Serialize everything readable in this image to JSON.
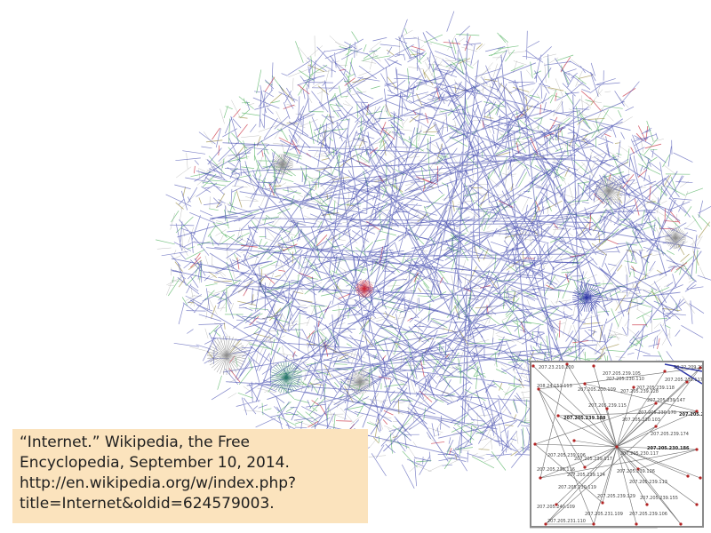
{
  "citation": {
    "lines": [
      "“Internet.” Wikipedia, the Free",
      "Encyclopedia, September 10, 2014.",
      "http://en.wikipedia.org/w/index.php?",
      "title=Internet&oldid=624579003."
    ]
  },
  "inset": {
    "labels": [
      {
        "text": "23.22.209.29",
        "bold": false
      },
      {
        "text": "207.23.210.200",
        "bold": false
      },
      {
        "text": "207.205.239.105",
        "bold": false
      },
      {
        "text": "207.205.239.117",
        "bold": false
      },
      {
        "text": "207.205.230.110",
        "bold": false
      },
      {
        "text": "207.205.239.118",
        "bold": false
      },
      {
        "text": "207.205.239.128",
        "bold": false
      },
      {
        "text": "207.205.239.147",
        "bold": false
      },
      {
        "text": "207.205.239.115",
        "bold": false
      },
      {
        "text": "207.205.230.103",
        "bold": false
      },
      {
        "text": "207.205.239.188",
        "bold": true
      },
      {
        "text": "207.205.239.100",
        "bold": true
      },
      {
        "text": "207.205.239.174",
        "bold": false
      },
      {
        "text": "207.205.230.186",
        "bold": true
      },
      {
        "text": "207.205.239.106",
        "bold": false
      },
      {
        "text": "207.205.239.117",
        "bold": false
      },
      {
        "text": "207.205.230.116",
        "bold": false
      },
      {
        "text": "207.205.239.126",
        "bold": false
      },
      {
        "text": "207.205.239.113",
        "bold": false
      },
      {
        "text": "207.205.230.119",
        "bold": false
      },
      {
        "text": "207.205.239.129",
        "bold": false
      },
      {
        "text": "207.205.239.155",
        "bold": false
      },
      {
        "text": "207.205.240.109",
        "bold": false
      },
      {
        "text": "207.205.231.109",
        "bold": false
      },
      {
        "text": "207.205.231.110",
        "bold": false
      },
      {
        "text": "207.205.239.106",
        "bold": false
      },
      {
        "text": "207.205.230.170",
        "bold": false
      },
      {
        "text": "208.24.151.113",
        "bold": false
      },
      {
        "text": "207.205.230.109",
        "bold": false
      },
      {
        "text": "207.205.239.124",
        "bold": false
      },
      {
        "text": "207.205.230.117",
        "bold": false
      }
    ]
  },
  "colors": {
    "citation_background": "#fbe3bd",
    "network_blue": "#2e37a6",
    "network_green": "#3aa84a",
    "network_olive": "#8a7a22",
    "network_red": "#c8283a",
    "network_grey": "#8f8f8f",
    "node_red": "#b22222"
  }
}
